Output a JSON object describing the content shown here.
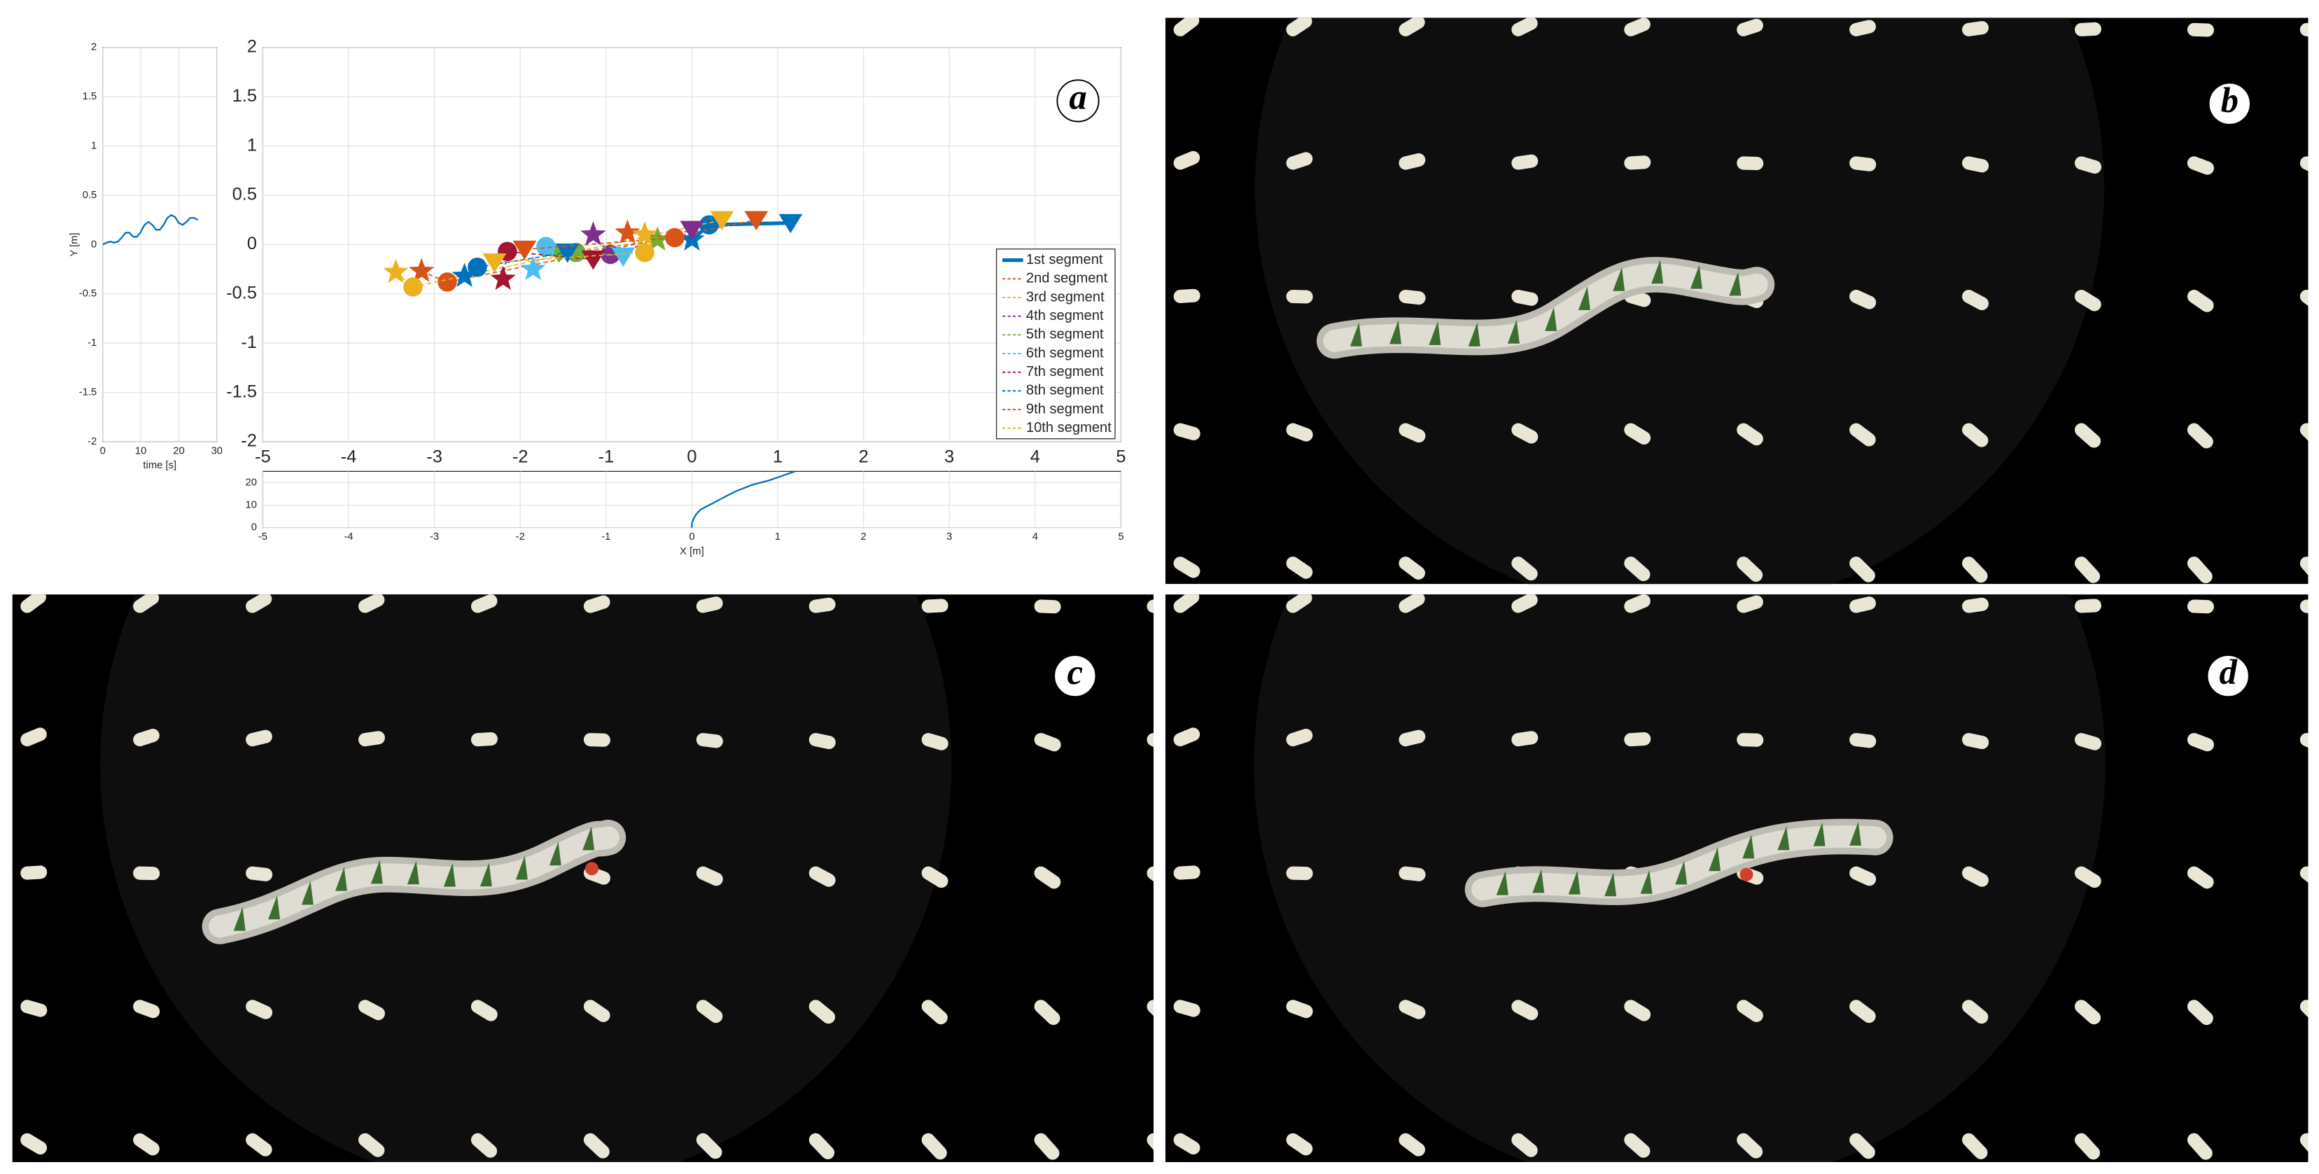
{
  "chart_data": [
    {
      "type": "line",
      "xlabel": "time [s]",
      "ylabel": "Y [m]",
      "color": "#0072bd",
      "x": [
        0,
        1,
        2,
        3,
        4,
        5,
        6,
        7,
        8,
        9,
        10,
        11,
        12,
        13,
        14,
        15,
        16,
        17,
        18,
        19,
        20,
        21,
        22,
        23,
        24,
        25
      ],
      "values": [
        0,
        0.02,
        0.03,
        0.02,
        0.03,
        0.07,
        0.12,
        0.12,
        0.08,
        0.08,
        0.13,
        0.2,
        0.23,
        0.2,
        0.15,
        0.15,
        0.2,
        0.27,
        0.3,
        0.28,
        0.22,
        0.2,
        0.23,
        0.27,
        0.27,
        0.25
      ],
      "xlim": [
        0,
        30
      ],
      "xticks": [
        0,
        10,
        20,
        30
      ],
      "ylim": [
        -2,
        2
      ],
      "yticks": [
        -2,
        -1.5,
        -1,
        -0.5,
        0,
        0.5,
        1,
        1.5,
        2
      ],
      "grid": true
    },
    {
      "type": "scatter",
      "annotation": "a",
      "legend": "lower right",
      "grid": true,
      "xlim": [
        -5,
        5
      ],
      "xticks": [
        -5,
        -4,
        -3,
        -2,
        -1,
        0,
        1,
        2,
        3,
        4,
        5
      ],
      "ylim": [
        -2,
        2
      ],
      "yticks": [
        -2,
        -1.5,
        -1,
        -0.5,
        0,
        0.5,
        1,
        1.5,
        2
      ],
      "series": [
        {
          "name": "1st segment",
          "color": "#0072bd",
          "line_style": "solid",
          "markers": [
            "star",
            "circle",
            "triangle"
          ],
          "x": [
            0.0,
            0.2,
            1.15
          ],
          "y": [
            0.05,
            0.2,
            0.22
          ]
        },
        {
          "name": "2nd segment",
          "color": "#d95319",
          "line_style": "dashed",
          "markers": [
            "star",
            "circle",
            "triangle"
          ],
          "x": [
            -3.15,
            -2.85,
            0.75
          ],
          "y": [
            -0.27,
            -0.38,
            0.25
          ]
        },
        {
          "name": "3rd segment",
          "color": "#edb120",
          "line_style": "dashed",
          "markers": [
            "star",
            "circle",
            "triangle"
          ],
          "x": [
            -3.45,
            -3.25,
            0.35
          ],
          "y": [
            -0.28,
            -0.43,
            0.25
          ]
        },
        {
          "name": "4th segment",
          "color": "#7e2f8e",
          "line_style": "dashed",
          "markers": [
            "star",
            "circle",
            "triangle"
          ],
          "x": [
            -1.15,
            -0.95,
            0.0
          ],
          "y": [
            0.1,
            -0.1,
            0.15
          ]
        },
        {
          "name": "5th segment",
          "color": "#77ac30",
          "line_style": "dashed",
          "markers": [
            "star",
            "circle",
            "triangle"
          ],
          "x": [
            -0.4,
            -1.35,
            -1.55
          ],
          "y": [
            0.05,
            -0.08,
            -0.08
          ]
        },
        {
          "name": "6th segment",
          "color": "#4dbeee",
          "line_style": "dashed",
          "markers": [
            "star",
            "circle",
            "triangle"
          ],
          "x": [
            -1.85,
            -1.7,
            -0.8
          ],
          "y": [
            -0.25,
            -0.02,
            -0.12
          ]
        },
        {
          "name": "7th segment",
          "color": "#a2142f",
          "line_style": "dashed",
          "markers": [
            "star",
            "circle",
            "triangle"
          ],
          "x": [
            -2.2,
            -2.15,
            -1.15
          ],
          "y": [
            -0.35,
            -0.07,
            -0.15
          ]
        },
        {
          "name": "8th segment",
          "color": "#0072bd",
          "line_style": "dashed",
          "markers": [
            "star",
            "circle",
            "triangle"
          ],
          "x": [
            -2.65,
            -2.5,
            -1.45
          ],
          "y": [
            -0.32,
            -0.23,
            -0.08
          ]
        },
        {
          "name": "9th segment",
          "color": "#d95319",
          "line_style": "dashed",
          "markers": [
            "star",
            "circle",
            "triangle"
          ],
          "x": [
            -0.75,
            -0.2,
            -1.95
          ],
          "y": [
            0.12,
            0.07,
            -0.05
          ]
        },
        {
          "name": "10th segment",
          "color": "#edb120",
          "line_style": "dashed",
          "markers": [
            "star",
            "circle",
            "triangle"
          ],
          "x": [
            -0.55,
            -0.55,
            -2.3
          ],
          "y": [
            0.1,
            -0.08,
            -0.18
          ]
        }
      ]
    },
    {
      "type": "line",
      "xlabel": "X [m]",
      "color": "#0072bd",
      "x": [
        0,
        0,
        0.02,
        0.05,
        0.1,
        0.2,
        0.35,
        0.5,
        0.7,
        0.9,
        1.05,
        1.2
      ],
      "values": [
        0,
        2,
        4,
        6,
        8,
        10,
        13,
        16,
        19,
        21,
        23,
        25
      ],
      "xlim": [
        -5,
        5
      ],
      "xticks": [
        -5,
        -4,
        -3,
        -2,
        -1,
        0,
        1,
        2,
        3,
        4,
        5
      ],
      "ylim": [
        0,
        25
      ],
      "yticks": [
        0,
        10,
        20
      ],
      "grid": true
    }
  ],
  "panels": [
    {
      "label": "b"
    },
    {
      "label": "c"
    },
    {
      "label": "d"
    }
  ]
}
